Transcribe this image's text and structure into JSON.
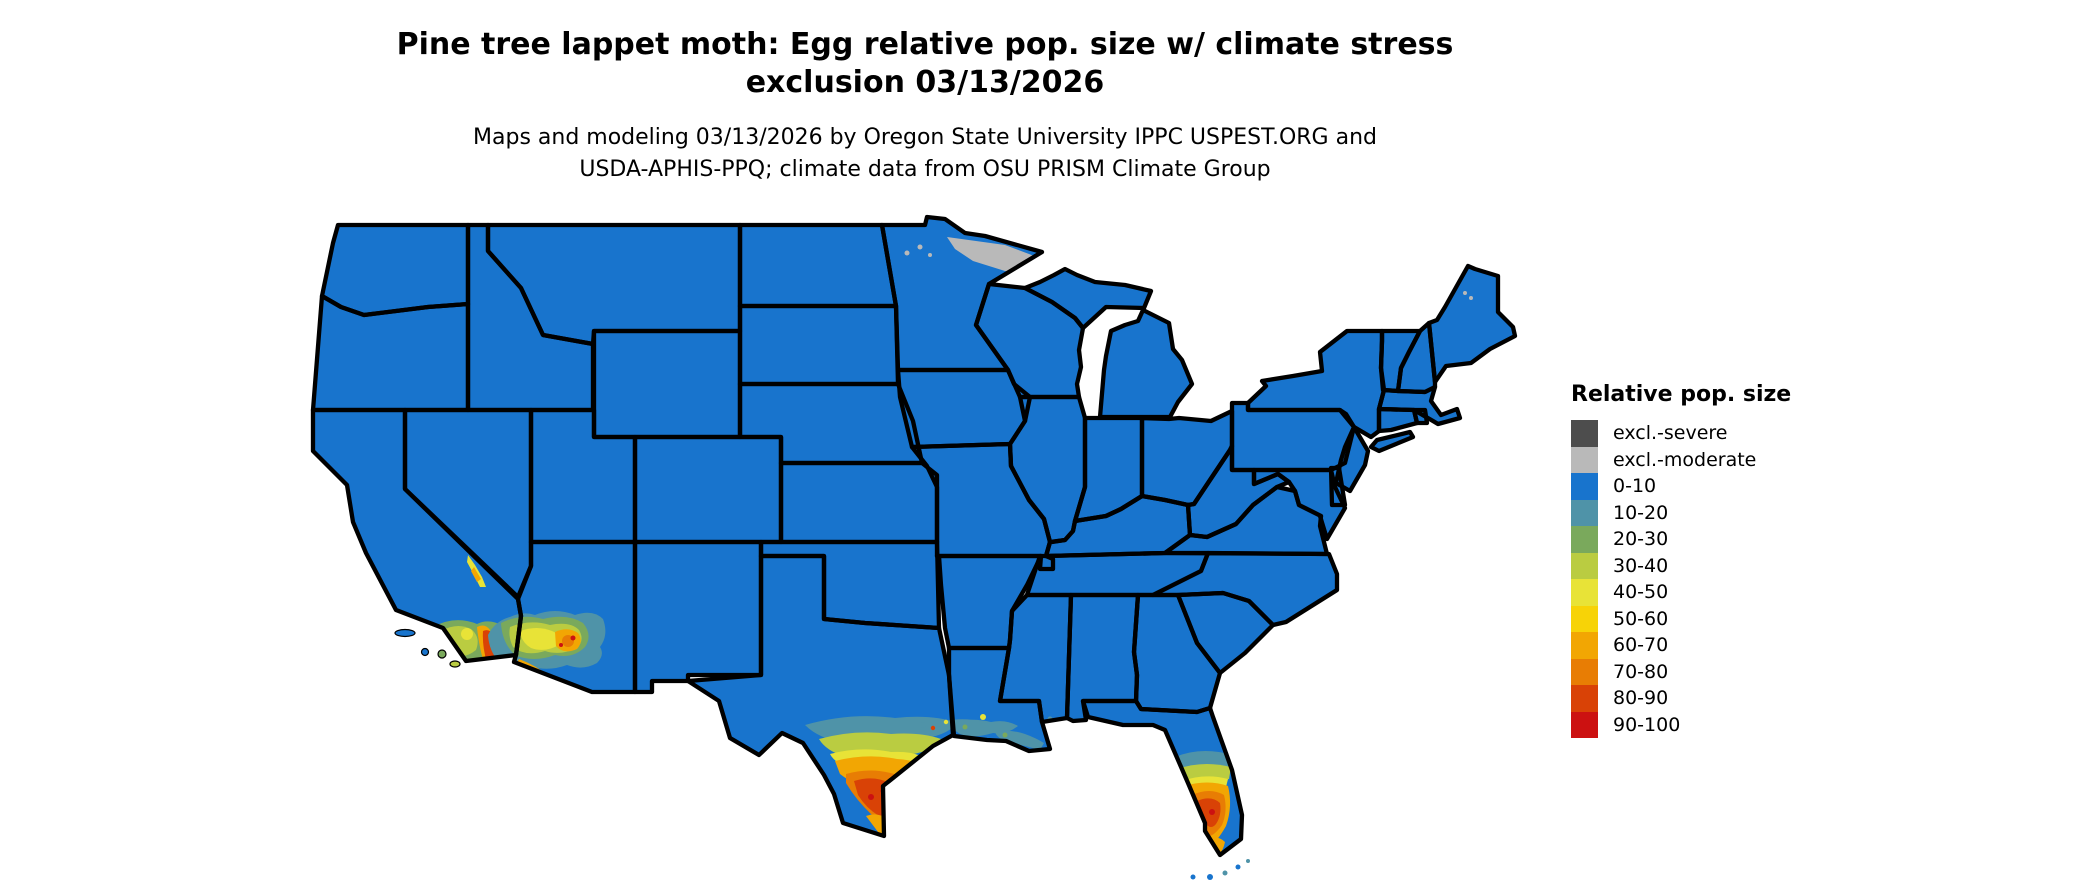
{
  "title": {
    "line1": "Pine tree lappet moth: Egg relative pop. size w/ climate stress",
    "line2": "exclusion 03/13/2026"
  },
  "subtitle": {
    "line1": "Maps and modeling 03/13/2026 by Oregon State University IPPC USPEST.ORG and",
    "line2": "USDA-APHIS-PPQ; climate data from OSU PRISM Climate Group"
  },
  "legend": {
    "title": "Relative pop. size",
    "entries": [
      {
        "id": "excl_severe",
        "label": "excl.-severe",
        "color": "#4d4d4d"
      },
      {
        "id": "excl_moderate",
        "label": "excl.-moderate",
        "color": "#b9b9b9"
      },
      {
        "id": "b0",
        "label": "0-10",
        "color": "#1874cd"
      },
      {
        "id": "b10",
        "label": "10-20",
        "color": "#4f93a8"
      },
      {
        "id": "b20",
        "label": "20-30",
        "color": "#7aa95c"
      },
      {
        "id": "b30",
        "label": "30-40",
        "color": "#bacc41"
      },
      {
        "id": "b40",
        "label": "40-50",
        "color": "#e8e337"
      },
      {
        "id": "b50",
        "label": "50-60",
        "color": "#f7d307"
      },
      {
        "id": "b60",
        "label": "60-70",
        "color": "#f2a603"
      },
      {
        "id": "b70",
        "label": "70-80",
        "color": "#e87d04"
      },
      {
        "id": "b80",
        "label": "80-90",
        "color": "#d94206"
      },
      {
        "id": "b90",
        "label": "90-100",
        "color": "#cc1111"
      }
    ]
  },
  "map": {
    "base_fill": "#1874cd",
    "border_color": "#000000",
    "background": "#ffffff",
    "hotspots": [
      {
        "area": "northern Minnesota border",
        "category": "excl.-moderate"
      },
      {
        "area": "most of contiguous US",
        "category": "0-10"
      },
      {
        "area": "eastern California / CA-NV border valley",
        "category": "40-70 streak"
      },
      {
        "area": "southern California and lower Colorado River",
        "category": "20-90 mosaic"
      },
      {
        "area": "south-central Arizona",
        "category": "20-90 mosaic"
      },
      {
        "area": "south Texas / Rio Grande Valley",
        "category": "10-90 gradient to red core"
      },
      {
        "area": "Texas-Louisiana Gulf coast",
        "category": "10-40 patches"
      },
      {
        "area": "central and southern Florida",
        "category": "10-90 gradient to red core"
      },
      {
        "area": "Florida Keys",
        "category": "0-20 specks"
      },
      {
        "area": "northern Maine",
        "category": "excl.-moderate specks"
      }
    ]
  }
}
